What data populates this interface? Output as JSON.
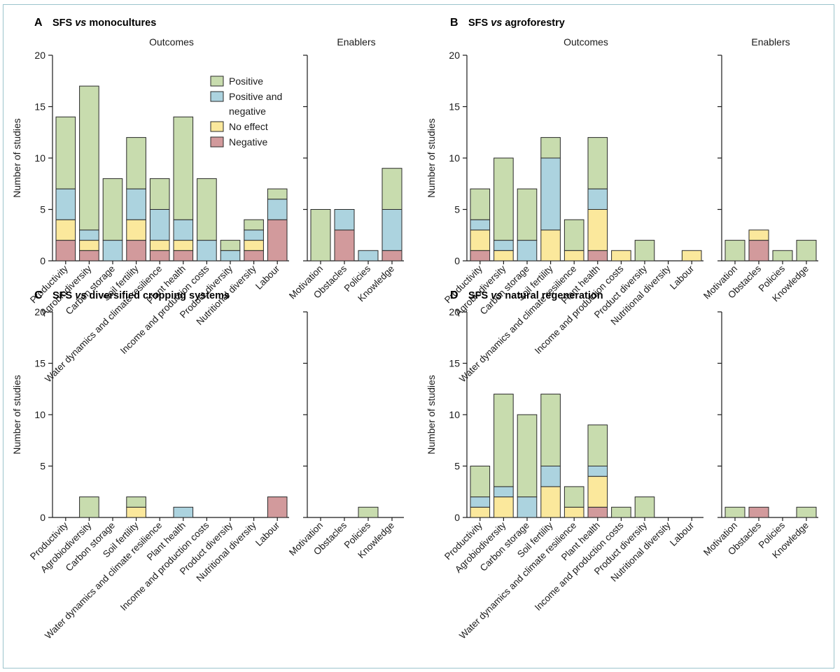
{
  "colors": {
    "positive": "#c8dcae",
    "positive_and_negative": "#acd3df",
    "no_effect": "#fbe89c",
    "negative": "#d29a9c"
  },
  "legend": {
    "entries": [
      {
        "key": "positive",
        "line1": "Positive",
        "line2": ""
      },
      {
        "key": "positive_and_negative",
        "line1": "Positive and",
        "line2": "negative"
      },
      {
        "key": "no_effect",
        "line1": "No effect",
        "line2": ""
      },
      {
        "key": "negative",
        "line1": "Negative",
        "line2": ""
      }
    ]
  },
  "chart_data": [
    {
      "type": "bar",
      "stacked": true,
      "letter": "A",
      "title_before": "SFS ",
      "title_vs": "vs",
      "title_after": " monocultures",
      "ylabel": "Number of studies",
      "ylim": [
        0,
        20
      ],
      "yticks": [
        0,
        5,
        10,
        15,
        20
      ],
      "legend_shown": true,
      "groups": [
        {
          "label": "Outcomes",
          "categories": [
            "Productivity",
            "Agrobiodiversity",
            "Carbon storage",
            "Soil fertility",
            "Water dynamics and climate resilience",
            "Plant health",
            "Income and production costs",
            "Product diversity",
            "Nutritional diversity",
            "Labour"
          ],
          "series": {
            "negative": [
              2,
              1,
              0,
              2,
              1,
              1,
              0,
              0,
              1,
              4
            ],
            "no_effect": [
              2,
              1,
              0,
              2,
              1,
              1,
              0,
              0,
              1,
              0
            ],
            "positive_and_negative": [
              3,
              1,
              2,
              3,
              3,
              2,
              2,
              1,
              1,
              2
            ],
            "positive": [
              7,
              14,
              6,
              5,
              3,
              10,
              6,
              1,
              1,
              1
            ]
          }
        },
        {
          "label": "Enablers",
          "categories": [
            "Motivation",
            "Obstacles",
            "Policies",
            "Knowledge"
          ],
          "series": {
            "negative": [
              0,
              3,
              0,
              1
            ],
            "no_effect": [
              0,
              0,
              0,
              0
            ],
            "positive_and_negative": [
              0,
              2,
              1,
              4
            ],
            "positive": [
              5,
              0,
              0,
              4
            ]
          }
        }
      ]
    },
    {
      "type": "bar",
      "stacked": true,
      "letter": "B",
      "title_before": "SFS ",
      "title_vs": "vs",
      "title_after": " agroforestry",
      "ylabel": "Number of studies",
      "ylim": [
        0,
        20
      ],
      "yticks": [
        0,
        5,
        10,
        15,
        20
      ],
      "legend_shown": false,
      "groups": [
        {
          "label": "Outcomes",
          "categories": [
            "Productivity",
            "Agrobiodiversity",
            "Carbon storage",
            "Soil fertility",
            "Water dynamics and climate resilience",
            "Plant health",
            "Income and production costs",
            "Product diversity",
            "Nutritional diversity",
            "Labour"
          ],
          "series": {
            "negative": [
              1,
              0,
              0,
              0,
              0,
              1,
              0,
              0,
              0,
              0
            ],
            "no_effect": [
              2,
              1,
              0,
              3,
              1,
              4,
              1,
              0,
              0,
              1
            ],
            "positive_and_negative": [
              1,
              1,
              2,
              7,
              0,
              2,
              0,
              0,
              0,
              0
            ],
            "positive": [
              3,
              8,
              5,
              2,
              3,
              5,
              0,
              2,
              0,
              0
            ]
          }
        },
        {
          "label": "Enablers",
          "categories": [
            "Motivation",
            "Obstacles",
            "Policies",
            "Knowledge"
          ],
          "series": {
            "negative": [
              0,
              2,
              0,
              0
            ],
            "no_effect": [
              0,
              1,
              0,
              0
            ],
            "positive_and_negative": [
              0,
              0,
              0,
              0
            ],
            "positive": [
              2,
              0,
              1,
              2
            ]
          }
        }
      ]
    },
    {
      "type": "bar",
      "stacked": true,
      "letter": "C",
      "title_before": "SFS ",
      "title_vs": "vs",
      "title_after": " diversified cropping systems",
      "ylabel": "Number of studies",
      "ylim": [
        0,
        20
      ],
      "yticks": [
        0,
        5,
        10,
        15,
        20
      ],
      "legend_shown": false,
      "groups": [
        {
          "label": "",
          "categories": [
            "Productivity",
            "Agrobiodiversity",
            "Carbon storage",
            "Soil fertility",
            "Water dynamics and climate resilience",
            "Plant health",
            "Income and production costs",
            "Product diversity",
            "Nutritional diversity",
            "Labour"
          ],
          "series": {
            "negative": [
              0,
              0,
              0,
              0,
              0,
              0,
              0,
              0,
              0,
              2
            ],
            "no_effect": [
              0,
              0,
              0,
              1,
              0,
              0,
              0,
              0,
              0,
              0
            ],
            "positive_and_negative": [
              0,
              0,
              0,
              0,
              0,
              1,
              0,
              0,
              0,
              0
            ],
            "positive": [
              0,
              2,
              0,
              1,
              0,
              0,
              0,
              0,
              0,
              0
            ]
          }
        },
        {
          "label": "",
          "categories": [
            "Motivation",
            "Obstacles",
            "Policies",
            "Knowledge"
          ],
          "series": {
            "negative": [
              0,
              0,
              0,
              0
            ],
            "no_effect": [
              0,
              0,
              0,
              0
            ],
            "positive_and_negative": [
              0,
              0,
              0,
              0
            ],
            "positive": [
              0,
              0,
              1,
              0
            ]
          }
        }
      ]
    },
    {
      "type": "bar",
      "stacked": true,
      "letter": "D",
      "title_before": "SFS ",
      "title_vs": "vs",
      "title_after": " natural regeneration",
      "ylabel": "Number of studies",
      "ylim": [
        0,
        20
      ],
      "yticks": [
        0,
        5,
        10,
        15,
        20
      ],
      "legend_shown": false,
      "groups": [
        {
          "label": "",
          "categories": [
            "Productivity",
            "Agrobiodiversity",
            "Carbon storage",
            "Soil fertility",
            "Water dynamics and climate resilience",
            "Plant health",
            "Income and production costs",
            "Product diversity",
            "Nutritional diversity",
            "Labour"
          ],
          "series": {
            "negative": [
              0,
              0,
              0,
              0,
              0,
              1,
              0,
              0,
              0,
              0
            ],
            "no_effect": [
              1,
              2,
              0,
              3,
              1,
              3,
              0,
              0,
              0,
              0
            ],
            "positive_and_negative": [
              1,
              1,
              2,
              2,
              0,
              1,
              0,
              0,
              0,
              0
            ],
            "positive": [
              3,
              9,
              8,
              7,
              2,
              4,
              1,
              2,
              0,
              0
            ]
          }
        },
        {
          "label": "",
          "categories": [
            "Motivation",
            "Obstacles",
            "Policies",
            "Knowledge"
          ],
          "series": {
            "negative": [
              0,
              1,
              0,
              0
            ],
            "no_effect": [
              0,
              0,
              0,
              0
            ],
            "positive_and_negative": [
              0,
              0,
              0,
              0
            ],
            "positive": [
              1,
              0,
              0,
              1
            ]
          }
        }
      ]
    }
  ]
}
